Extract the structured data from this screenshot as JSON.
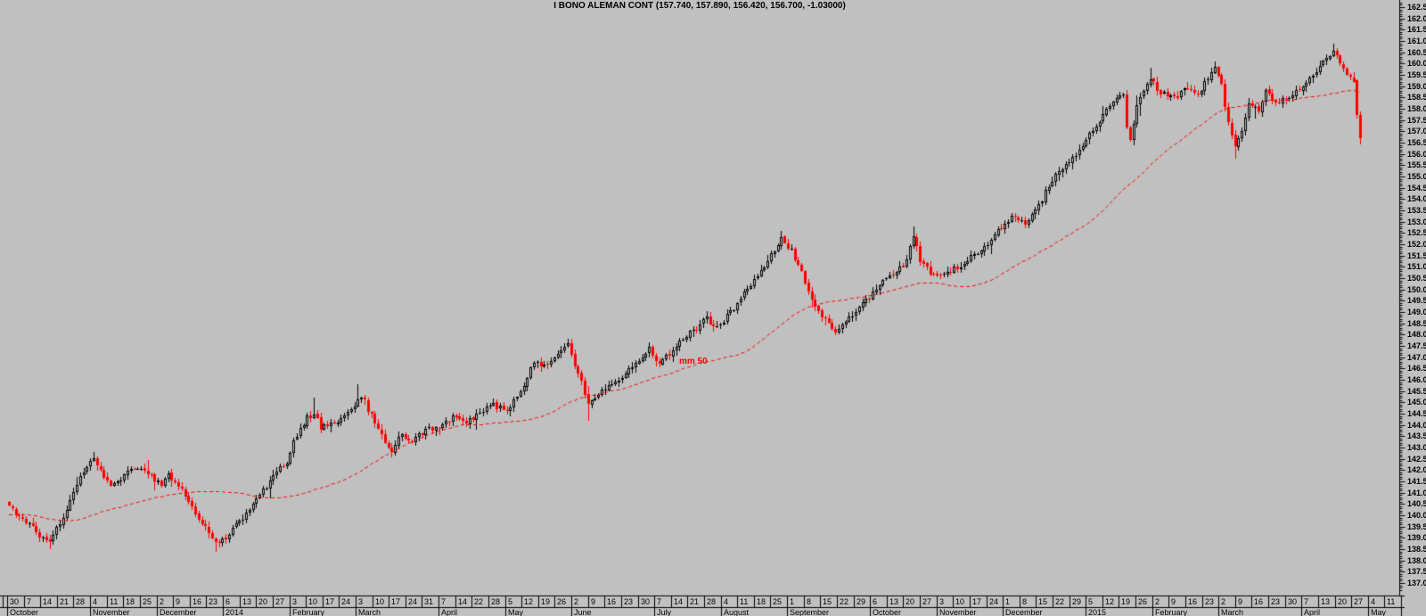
{
  "header": {
    "title": "I BONO ALEMAN CONT (157.740, 157.890, 156.420, 156.700, -1.03000)",
    "instrument": "I BONO ALEMAN CONT",
    "last_quote": {
      "open": "157.740",
      "high": "157.890",
      "low": "156.420",
      "close": "156.700",
      "change": "-1.03000"
    }
  },
  "chart": {
    "ma_label": "mm 50"
  },
  "colors": {
    "background": "#c0c0c0",
    "bull_candle": "#000000",
    "bear_candle": "#ff0000",
    "moving_average": "#ff0000",
    "axis": "#000000",
    "text": "#000000"
  },
  "y_axis": {
    "min": 137.0,
    "max": 162.5,
    "label_step": 0.5,
    "minor_tick_step": 0.1,
    "labels": [
      "162.5",
      "162.0",
      "161.5",
      "161.0",
      "160.5",
      "160.0",
      "159.5",
      "159.0",
      "158.5",
      "158.0",
      "157.5",
      "157.0",
      "156.5",
      "156.0",
      "155.5",
      "155.0",
      "154.5",
      "154.0",
      "153.5",
      "153.0",
      "152.5",
      "152.0",
      "151.5",
      "151.0",
      "150.5",
      "150.0",
      "149.5",
      "149.0",
      "148.5",
      "148.0",
      "147.5",
      "147.0",
      "146.5",
      "146.0",
      "145.5",
      "145.0",
      "144.5",
      "144.0",
      "143.5",
      "143.0",
      "142.5",
      "142.0",
      "141.5",
      "141.0",
      "140.5",
      "140.0",
      "139.5",
      "139.0",
      "138.5",
      "138.0",
      "137.5",
      "137.0"
    ]
  },
  "x_axis": {
    "months": [
      {
        "label": "October",
        "weeks": [
          "30",
          "7",
          "14",
          "21",
          "28"
        ]
      },
      {
        "label": "November",
        "weeks": [
          "4",
          "11",
          "18",
          "25"
        ]
      },
      {
        "label": "December",
        "weeks": [
          "2",
          "9",
          "16",
          "23"
        ]
      },
      {
        "label": "2014",
        "weeks": [
          "6",
          "13",
          "20",
          "27"
        ]
      },
      {
        "label": "February",
        "weeks": [
          "3",
          "10",
          "17",
          "24"
        ]
      },
      {
        "label": "March",
        "weeks": [
          "3",
          "10",
          "17",
          "24",
          "31"
        ]
      },
      {
        "label": "April",
        "weeks": [
          "7",
          "14",
          "22",
          "28"
        ]
      },
      {
        "label": "May",
        "weeks": [
          "5",
          "12",
          "19",
          "26"
        ]
      },
      {
        "label": "June",
        "weeks": [
          "2",
          "9",
          "16",
          "23",
          "30"
        ]
      },
      {
        "label": "July",
        "weeks": [
          "7",
          "14",
          "21",
          "28"
        ]
      },
      {
        "label": "August",
        "weeks": [
          "4",
          "11",
          "18",
          "25"
        ]
      },
      {
        "label": "September",
        "weeks": [
          "1",
          "8",
          "15",
          "22",
          "29"
        ]
      },
      {
        "label": "October",
        "weeks": [
          "6",
          "13",
          "20",
          "27"
        ]
      },
      {
        "label": "November",
        "weeks": [
          "3",
          "10",
          "17",
          "24"
        ]
      },
      {
        "label": "December",
        "weeks": [
          "1",
          "8",
          "15",
          "22",
          "29"
        ]
      },
      {
        "label": "2015",
        "weeks": [
          "5",
          "12",
          "19",
          "26"
        ]
      },
      {
        "label": "February",
        "weeks": [
          "2",
          "9",
          "16",
          "23"
        ]
      },
      {
        "label": "March",
        "weeks": [
          "2",
          "9",
          "16",
          "23",
          "30"
        ]
      },
      {
        "label": "April",
        "weeks": [
          "7",
          "13",
          "20",
          "27"
        ]
      },
      {
        "label": "May",
        "weeks": [
          "4",
          "11"
        ]
      }
    ]
  },
  "chart_data": {
    "type": "candlestick",
    "title": "I BONO ALEMAN CONT (157.740, 157.890, 156.420, 156.700, -1.03000)",
    "x_range": "30 Sep 2013 - Apr 2015 (daily bars)",
    "ylim": [
      137.0,
      162.5
    ],
    "grid": false,
    "legend": "none",
    "num_bars": 400,
    "ma": {
      "type": "sma",
      "period": 50,
      "label": "mm 50",
      "style": "red dashed"
    },
    "_note": "close_anchors are [barIndex, close] keyframes of the estimated daily close path read from the chart; bars between anchors are interpolated.",
    "close_anchors": [
      [
        0,
        140.3
      ],
      [
        3,
        140.0
      ],
      [
        6,
        139.6
      ],
      [
        9,
        139.1
      ],
      [
        12,
        138.9
      ],
      [
        15,
        139.6
      ],
      [
        18,
        140.7
      ],
      [
        21,
        141.7
      ],
      [
        23,
        142.2
      ],
      [
        25,
        142.4
      ],
      [
        27,
        142.0
      ],
      [
        30,
        141.4
      ],
      [
        33,
        141.6
      ],
      [
        36,
        142.0
      ],
      [
        39,
        142.2
      ],
      [
        42,
        141.7
      ],
      [
        45,
        141.3
      ],
      [
        47,
        141.8
      ],
      [
        49,
        141.4
      ],
      [
        52,
        140.9
      ],
      [
        54,
        140.3
      ],
      [
        56,
        139.9
      ],
      [
        59,
        139.2
      ],
      [
        61,
        138.8
      ],
      [
        63,
        138.9
      ],
      [
        66,
        139.4
      ],
      [
        69,
        139.9
      ],
      [
        72,
        140.5
      ],
      [
        75,
        141.1
      ],
      [
        78,
        141.7
      ],
      [
        80,
        142.1
      ],
      [
        82,
        142.4
      ],
      [
        84,
        143.2
      ],
      [
        86,
        143.9
      ],
      [
        88,
        144.3
      ],
      [
        90,
        144.5
      ],
      [
        92,
        143.9
      ],
      [
        95,
        144.0
      ],
      [
        98,
        144.3
      ],
      [
        101,
        144.7
      ],
      [
        103,
        145.2
      ],
      [
        105,
        145.0
      ],
      [
        108,
        144.1
      ],
      [
        111,
        143.2
      ],
      [
        113,
        142.9
      ],
      [
        116,
        143.6
      ],
      [
        119,
        143.2
      ],
      [
        123,
        143.8
      ],
      [
        127,
        143.9
      ],
      [
        131,
        144.3
      ],
      [
        135,
        144.1
      ],
      [
        139,
        144.5
      ],
      [
        143,
        144.9
      ],
      [
        147,
        144.6
      ],
      [
        151,
        145.5
      ],
      [
        155,
        146.8
      ],
      [
        158,
        146.6
      ],
      [
        162,
        147.1
      ],
      [
        165,
        147.5
      ],
      [
        168,
        146.3
      ],
      [
        171,
        145.0
      ],
      [
        174,
        145.3
      ],
      [
        178,
        145.8
      ],
      [
        182,
        146.2
      ],
      [
        186,
        146.9
      ],
      [
        189,
        147.4
      ],
      [
        191,
        146.7
      ],
      [
        195,
        147.1
      ],
      [
        199,
        147.8
      ],
      [
        203,
        148.3
      ],
      [
        206,
        148.7
      ],
      [
        209,
        148.3
      ],
      [
        213,
        149.0
      ],
      [
        217,
        149.8
      ],
      [
        221,
        150.6
      ],
      [
        225,
        151.5
      ],
      [
        228,
        152.2
      ],
      [
        231,
        151.7
      ],
      [
        234,
        150.8
      ],
      [
        237,
        149.6
      ],
      [
        240,
        148.8
      ],
      [
        244,
        148.2
      ],
      [
        248,
        148.8
      ],
      [
        252,
        149.4
      ],
      [
        256,
        150.0
      ],
      [
        260,
        150.6
      ],
      [
        263,
        150.9
      ],
      [
        265,
        151.3
      ],
      [
        267,
        152.3
      ],
      [
        269,
        151.3
      ],
      [
        272,
        150.7
      ],
      [
        276,
        150.6
      ],
      [
        280,
        151.0
      ],
      [
        284,
        151.4
      ],
      [
        288,
        151.9
      ],
      [
        291,
        152.4
      ],
      [
        294,
        152.9
      ],
      [
        297,
        153.3
      ],
      [
        300,
        152.9
      ],
      [
        303,
        153.4
      ],
      [
        306,
        154.3
      ],
      [
        309,
        155.1
      ],
      [
        312,
        155.5
      ],
      [
        315,
        156.0
      ],
      [
        318,
        156.6
      ],
      [
        321,
        157.3
      ],
      [
        324,
        157.9
      ],
      [
        327,
        158.4
      ],
      [
        329,
        158.6
      ],
      [
        330,
        157.2
      ],
      [
        331,
        156.7
      ],
      [
        333,
        158.1
      ],
      [
        335,
        158.9
      ],
      [
        337,
        159.3
      ],
      [
        340,
        158.7
      ],
      [
        344,
        158.5
      ],
      [
        348,
        158.9
      ],
      [
        351,
        158.6
      ],
      [
        354,
        159.4
      ],
      [
        356,
        159.9
      ],
      [
        358,
        159.0
      ],
      [
        360,
        157.4
      ],
      [
        362,
        156.3
      ],
      [
        364,
        157.0
      ],
      [
        366,
        158.3
      ],
      [
        369,
        157.9
      ],
      [
        371,
        158.8
      ],
      [
        374,
        158.3
      ],
      [
        378,
        158.5
      ],
      [
        381,
        158.9
      ],
      [
        384,
        159.4
      ],
      [
        387,
        159.9
      ],
      [
        389,
        160.2
      ],
      [
        391,
        160.5
      ],
      [
        393,
        160.0
      ],
      [
        395,
        159.4
      ],
      [
        397,
        159.3
      ],
      [
        398,
        157.74
      ],
      [
        399,
        156.7
      ]
    ],
    "lead_in_anchors": [
      [
        -55,
        139.0
      ],
      [
        -38,
        140.8
      ],
      [
        -22,
        139.5
      ],
      [
        -8,
        139.9
      ],
      [
        -1,
        140.2
      ]
    ],
    "wick_events": [
      {
        "i": 12,
        "low": 138.5
      },
      {
        "i": 61,
        "low": 138.4
      },
      {
        "i": 90,
        "high": 145.2
      },
      {
        "i": 103,
        "high": 145.8
      },
      {
        "i": 165,
        "high": 147.8
      },
      {
        "i": 171,
        "low": 144.2
      },
      {
        "i": 228,
        "high": 152.6
      },
      {
        "i": 267,
        "high": 152.8
      },
      {
        "i": 337,
        "high": 159.8
      },
      {
        "i": 356,
        "high": 160.1
      },
      {
        "i": 362,
        "low": 155.8
      },
      {
        "i": 391,
        "high": 160.9
      }
    ],
    "last_bars": [
      {
        "i": 398,
        "o": 159.25,
        "h": 159.32,
        "l": 157.55,
        "c": 157.74
      },
      {
        "i": 399,
        "o": 157.74,
        "h": 157.89,
        "l": 156.42,
        "c": 156.7
      }
    ]
  }
}
